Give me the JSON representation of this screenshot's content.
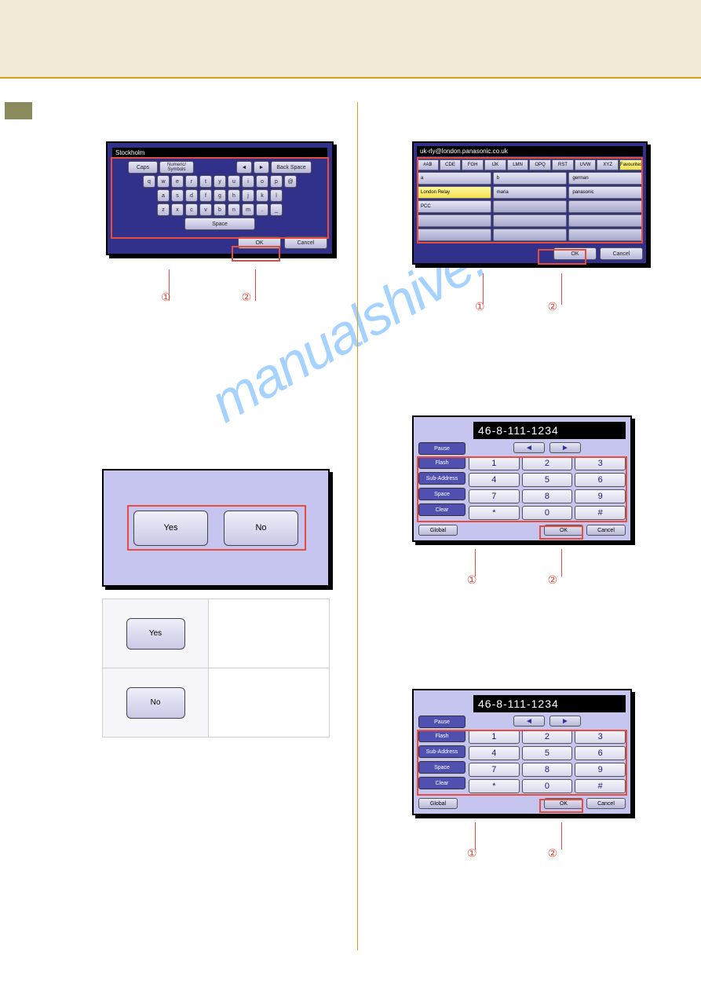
{
  "watermark": "manualshive.com",
  "kb": {
    "title": "Stockholm",
    "caps": "Caps",
    "numsym": "Numeric/\nSymbols",
    "backspace": "Back Space",
    "space": "Space",
    "ok": "OK",
    "cancel": "Cancel",
    "row1": [
      "q",
      "w",
      "e",
      "r",
      "t",
      "y",
      "u",
      "i",
      "o",
      "p",
      "@"
    ],
    "row2": [
      "a",
      "s",
      "d",
      "f",
      "g",
      "h",
      "j",
      "k",
      "l"
    ],
    "row3": [
      "z",
      "x",
      "c",
      "v",
      "b",
      "n",
      "m",
      ".",
      "_"
    ]
  },
  "yn": {
    "yes": "Yes",
    "no": "No"
  },
  "ab": {
    "title": "uk-rly@london.panasonic.co.uk",
    "tabs": [
      "#AB",
      "CDE",
      "FGH",
      "IJK",
      "LMN",
      "OPQ",
      "RST",
      "UVW",
      "XYZ",
      "Favourites"
    ],
    "cells": [
      [
        "a",
        "b",
        "german"
      ],
      [
        "London Relay",
        "maria",
        "panasonic"
      ],
      [
        "PCC",
        "",
        ""
      ]
    ],
    "ok": "OK",
    "cancel": "Cancel"
  },
  "np": {
    "display": "46-8-111-1234",
    "pause": "Pause",
    "flash": "Flash",
    "subaddr": "Sub-Address",
    "space": "Space",
    "clear": "Clear",
    "global": "Global",
    "ok": "OK",
    "cancel": "Cancel",
    "keys": [
      "1",
      "2",
      "3",
      "4",
      "5",
      "6",
      "7",
      "8",
      "9",
      "*",
      "0",
      "#"
    ]
  },
  "nums": {
    "n1": "①",
    "n2": "②"
  }
}
